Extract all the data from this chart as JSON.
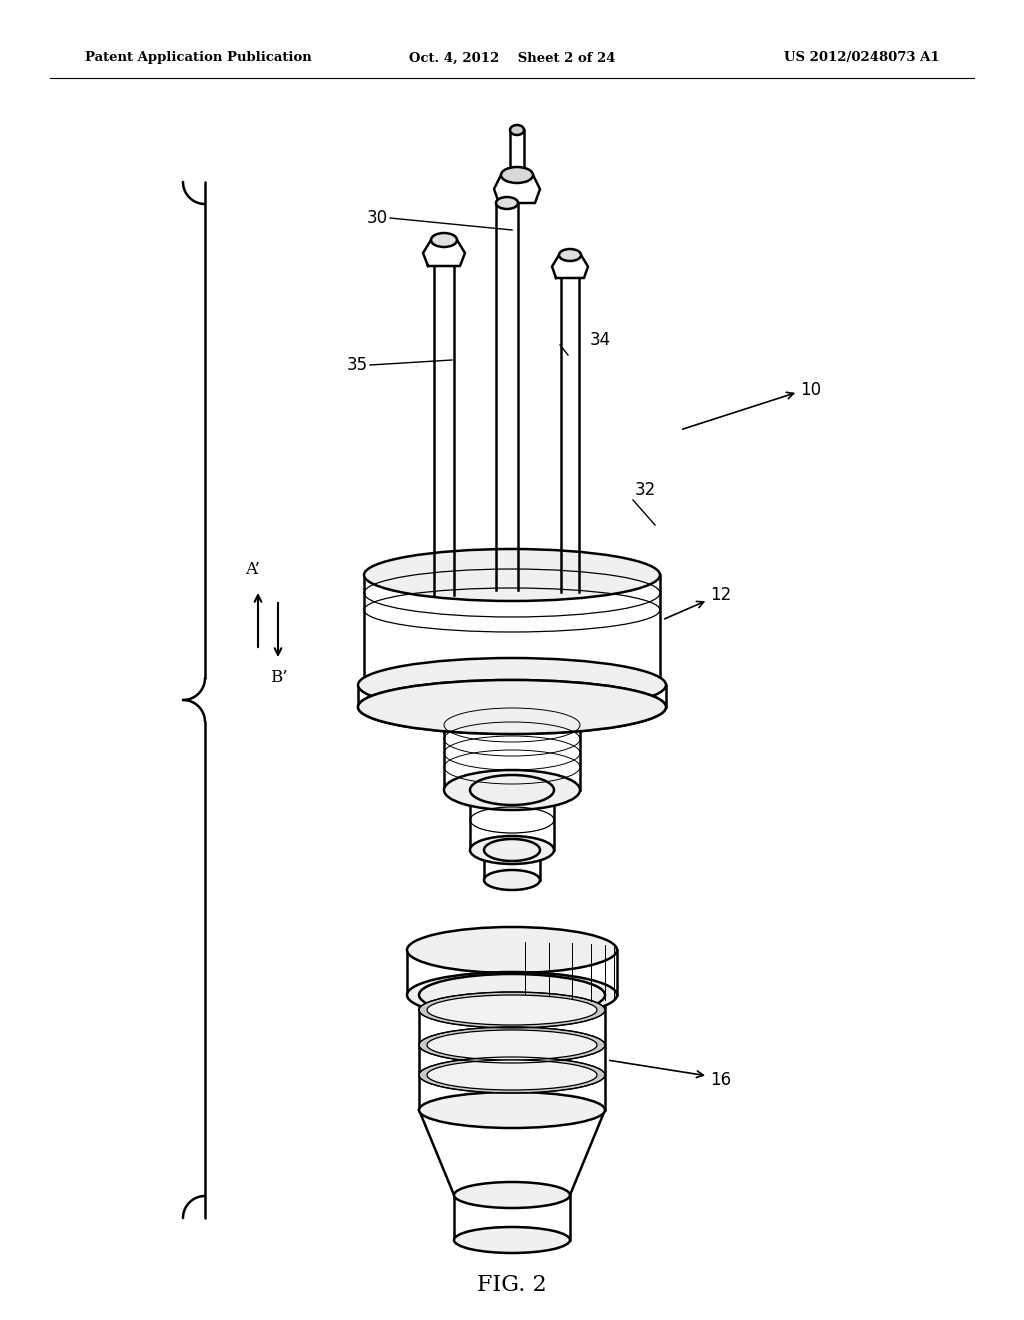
{
  "title_left": "Patent Application Publication",
  "title_center": "Oct. 4, 2012    Sheet 2 of 24",
  "title_right": "US 2012/0248073 A1",
  "fig_label": "FIG. 2",
  "bg_color": "#ffffff",
  "line_color": "#000000"
}
